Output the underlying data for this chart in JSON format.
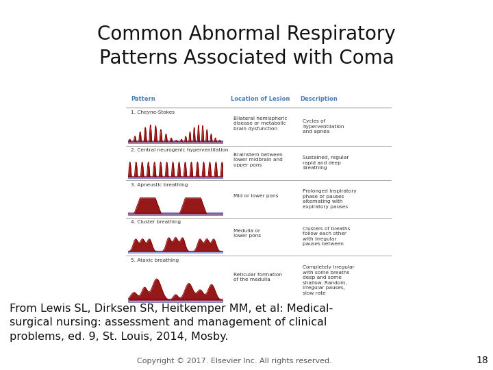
{
  "title": "Common Abnormal Respiratory\nPatterns Associated with Coma",
  "title_fontsize": 20,
  "bg_color": "#ffffff",
  "table_bg": "#dce9f0",
  "header_text_color": "#4a7eb5",
  "row_line_color": "#999999",
  "col_headers": [
    "Pattern",
    "Location of Lesion",
    "Description"
  ],
  "rows": [
    {
      "name": "1. Cheyne-Stokes",
      "location": "Bilateral hemispheric\ndisease or metabolic\nbrain dysfunction",
      "description": "Cycles of\nhyperventilation\nand apnea",
      "wave_type": "cheyne_stokes"
    },
    {
      "name": "2. Central neurogenic hyperventilation",
      "location": "Brainstem between\nlower midbrain and\nupper pons",
      "description": "Sustained, regular\nrapid and deep\nbreathing",
      "wave_type": "central_neurogenic"
    },
    {
      "name": "3. Apneustic breathing",
      "location": "Mid or lower pons",
      "description": "Prolonged inspiratory\nphase or pauses\nalternating with\nexpiratory pauses",
      "wave_type": "apneustic"
    },
    {
      "name": "4. Cluster breathing",
      "location": "Medulla or\nlower pons",
      "description": "Clusters of breaths\nfollow each other\nwith irregular\npauses between",
      "wave_type": "cluster"
    },
    {
      "name": "5. Ataxic breathing",
      "location": "Reticular formation\nof the medulla",
      "description": "Completely irregular\nwith some breaths\ndeep and some\nshallow. Random,\nirregular pauses,\nslow rate",
      "wave_type": "ataxic"
    }
  ],
  "wave_color": "#8b0000",
  "baseline_color": "#5555aa",
  "footer_text": "From Lewis SL, Dirksen SR, Heitkemper MM, et al: Medical-\nsurgical nursing: assessment and management of clinical\nproblems, ed. 9, St. Louis, 2014, Mosby.",
  "copyright_text": "Copyright © 2017. Elsevier Inc. All rights reserved.",
  "page_number": "18",
  "footer_fontsize": 11.5,
  "copyright_fontsize": 8
}
